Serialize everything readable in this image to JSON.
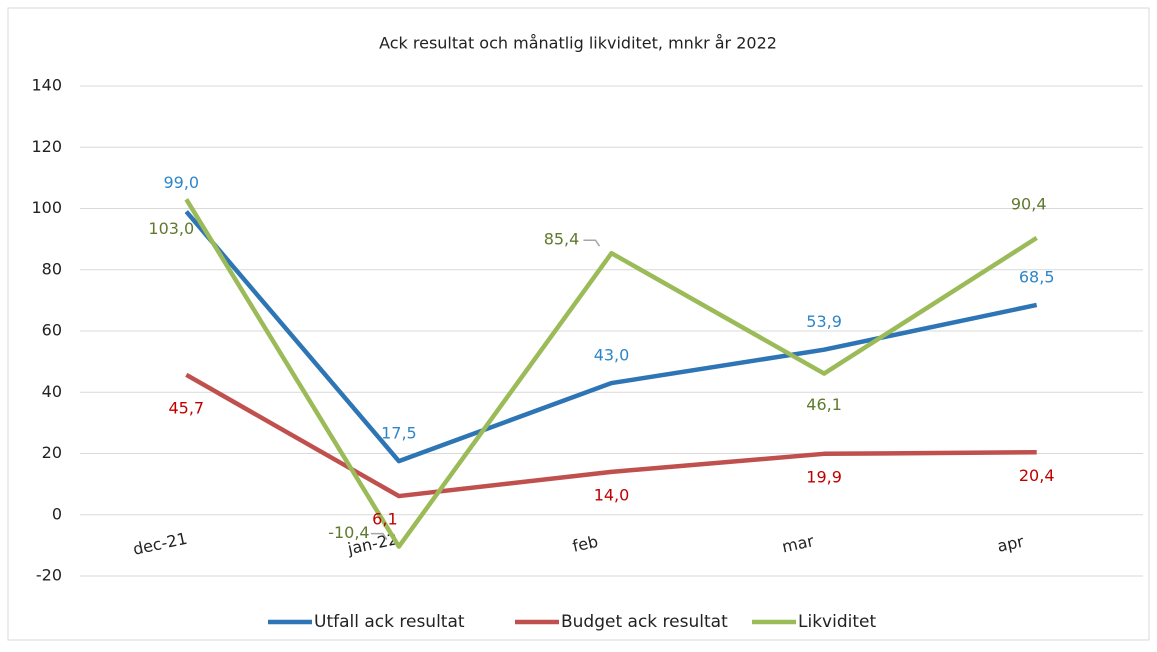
{
  "chart_data": {
    "type": "line",
    "title": "Ack resultat och månatlig likviditet, mnkr år 2022",
    "categories": [
      "dec-21",
      "jan-22",
      "feb",
      "mar",
      "apr"
    ],
    "series": [
      {
        "name": "Utfall ack resultat",
        "color": "#2e75b6",
        "label_color": "#2e86c8",
        "values": [
          99.0,
          17.5,
          43.0,
          53.9,
          68.5
        ],
        "value_labels": [
          "99,0",
          "17,5",
          "43,0",
          "53,9",
          "68,5"
        ]
      },
      {
        "name": "Budget ack resultat",
        "color": "#c0504d",
        "label_color": "#c00000",
        "values": [
          45.7,
          6.1,
          14.0,
          19.9,
          20.4
        ],
        "value_labels": [
          "45,7",
          "6,1",
          "14,0",
          "19,9",
          "20,4"
        ]
      },
      {
        "name": "Likviditet",
        "color": "#9bbb59",
        "label_color": "#5f7a2f",
        "values": [
          103.0,
          -10.4,
          85.4,
          46.1,
          90.4
        ],
        "value_labels": [
          "103,0",
          "-10,4",
          "85,4",
          "46,1",
          "90,4"
        ]
      }
    ],
    "ylim": [
      -20,
      140
    ],
    "yticks": [
      -20,
      0,
      20,
      40,
      60,
      80,
      100,
      120,
      140
    ],
    "grid": true,
    "legend": "bottom"
  }
}
